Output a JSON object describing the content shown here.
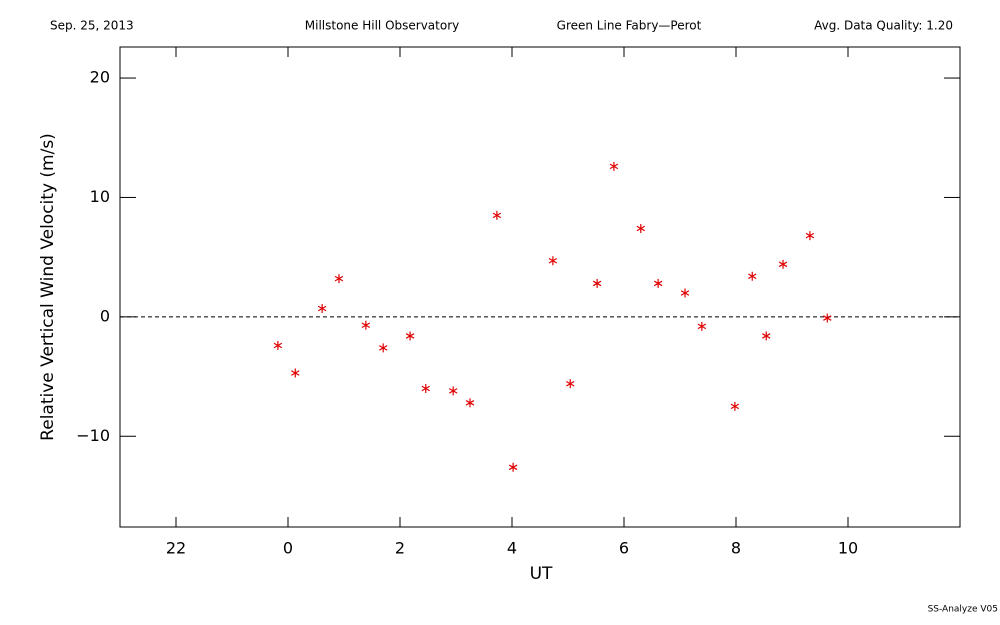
{
  "chart_data": {
    "type": "scatter",
    "header": [
      "Sep. 25, 2013",
      "Millstone Hill Observatory",
      "Green Line Fabry—Perot",
      "Avg. Data Quality: 1.20"
    ],
    "xlabel": "UT",
    "ylabel": "Relative Vertical Wind Velocity (m/s)",
    "footer": "SS-Analyze V05",
    "xlim": [
      -3,
      12
    ],
    "ylim": [
      -17.6,
      22.6
    ],
    "xticks": [
      {
        "value": -2,
        "label": "22"
      },
      0,
      2,
      4,
      6,
      8,
      10
    ],
    "yticks": [
      {
        "value": -10,
        "label": "−10"
      },
      0,
      10,
      20
    ],
    "hline": 0,
    "series": [
      {
        "color": "#e00000",
        "x": [
          -0.18,
          0.13,
          0.61,
          0.91,
          1.39,
          1.7,
          2.18,
          2.46,
          2.95,
          3.25,
          3.73,
          4.02,
          4.73,
          5.04,
          5.52,
          5.82,
          6.3,
          6.61,
          7.09,
          7.39,
          7.98,
          8.29,
          8.54,
          8.84,
          9.32,
          9.63
        ],
        "values": [
          -2.4,
          -4.7,
          0.7,
          3.2,
          -0.7,
          -2.6,
          -1.6,
          -6.0,
          -6.2,
          -7.2,
          8.5,
          -12.6,
          4.7,
          -5.6,
          2.8,
          12.6,
          7.4,
          2.8,
          2.0,
          -0.8,
          -7.5,
          3.4,
          -1.6,
          4.4,
          6.8,
          -0.1
        ]
      }
    ]
  }
}
